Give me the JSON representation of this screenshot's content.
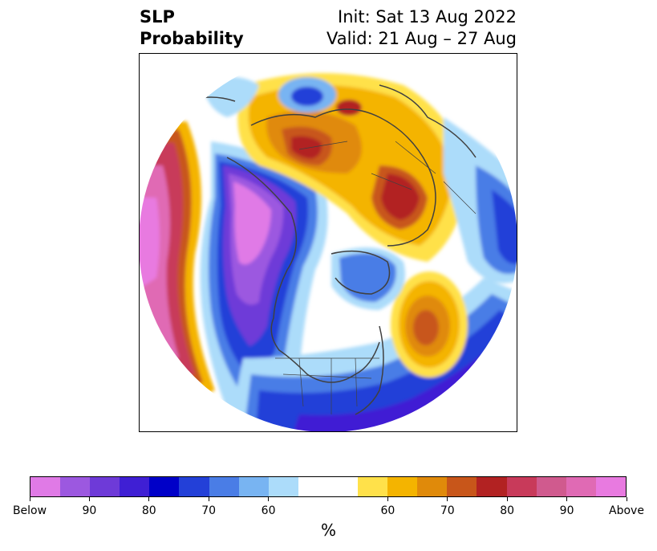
{
  "title": {
    "left_line1": "SLP",
    "left_line2": "Probability",
    "right_line1": "Init: Sat 13 Aug 2022",
    "right_line2": "Valid: 21 Aug – 27 Aug"
  },
  "colorbar": {
    "unit": "%",
    "colors": [
      "#e07ae6",
      "#9c58e0",
      "#6e3ad8",
      "#3f1fd4",
      "#0000c8",
      "#2340d8",
      "#4a7de6",
      "#78b4f2",
      "#acdcfa",
      "#ffffff",
      "#ffffff",
      "#ffe14a",
      "#f4b400",
      "#e08a0a",
      "#c8561a",
      "#b22222",
      "#c83a5a",
      "#d05a8e",
      "#e06ab4",
      "#e87ae0"
    ],
    "labels": [
      "Below",
      "90",
      "80",
      "70",
      "60",
      "60",
      "70",
      "80",
      "90",
      "Above"
    ]
  },
  "map": {
    "projection": "north polar stereographic",
    "features": [
      "coastlines",
      "country borders",
      "state/province borders"
    ]
  }
}
